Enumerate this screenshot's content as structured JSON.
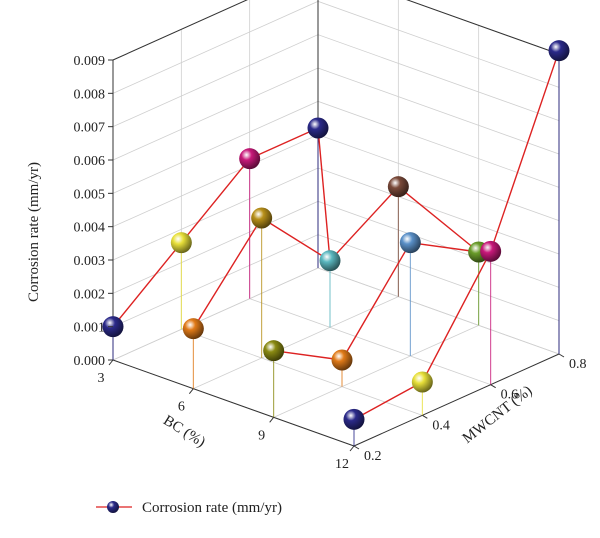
{
  "chart_data": {
    "type": "scatter",
    "title": "",
    "zlabel": "Corrosion rate (mm/yr)",
    "xlabel": "BC (%)",
    "ylabel": "MWCNT (%)",
    "x_ticks": [
      "3",
      "6",
      "9",
      "12"
    ],
    "y_ticks": [
      "0.2",
      "0.4",
      "0.6",
      "0.8"
    ],
    "z_ticks": [
      "0.000",
      "0.001",
      "0.002",
      "0.003",
      "0.004",
      "0.005",
      "0.006",
      "0.007",
      "0.008",
      "0.009"
    ],
    "xlim": [
      3,
      12
    ],
    "ylim": [
      0.2,
      0.8
    ],
    "zlim": [
      0,
      0.009
    ],
    "grid": true,
    "legend_position": "bottom-left",
    "series": [
      {
        "name": "Corrosion rate (mm/yr)",
        "marker_color": "#2b2a8a",
        "line_color": "#dd2222",
        "points": [
          {
            "bc": 3,
            "mwcnt": 0.2,
            "rate": 0.001,
            "color": "#2b2a8a"
          },
          {
            "bc": 3,
            "mwcnt": 0.4,
            "rate": 0.0026,
            "color": "#e8e03a"
          },
          {
            "bc": 3,
            "mwcnt": 0.6,
            "rate": 0.0042,
            "color": "#c8197a"
          },
          {
            "bc": 3,
            "mwcnt": 0.8,
            "rate": 0.0042,
            "color": "#2b2a8a"
          },
          {
            "bc": 6,
            "mwcnt": 0.2,
            "rate": 0.0018,
            "color": "#e07a18"
          },
          {
            "bc": 6,
            "mwcnt": 0.4,
            "rate": 0.0042,
            "color": "#b8901a"
          },
          {
            "bc": 6,
            "mwcnt": 0.6,
            "rate": 0.002,
            "color": "#5bb8c0"
          },
          {
            "bc": 6,
            "mwcnt": 0.8,
            "rate": 0.0033,
            "color": "#7a4a3a"
          },
          {
            "bc": 9,
            "mwcnt": 0.2,
            "rate": 0.002,
            "color": "#8a8a12"
          },
          {
            "bc": 9,
            "mwcnt": 0.4,
            "rate": 0.0008,
            "color": "#e07a18"
          },
          {
            "bc": 9,
            "mwcnt": 0.6,
            "rate": 0.0034,
            "color": "#5a90c8"
          },
          {
            "bc": 9,
            "mwcnt": 0.8,
            "rate": 0.0022,
            "color": "#6a9c2a"
          },
          {
            "bc": 12,
            "mwcnt": 0.2,
            "rate": 0.0008,
            "color": "#2b2a8a"
          },
          {
            "bc": 12,
            "mwcnt": 0.4,
            "rate": 0.001,
            "color": "#e8e03a"
          },
          {
            "bc": 12,
            "mwcnt": 0.6,
            "rate": 0.004,
            "color": "#c8197a"
          },
          {
            "bc": 12,
            "mwcnt": 0.8,
            "rate": 0.0091,
            "color": "#2b2a8a"
          }
        ],
        "line_segments": [
          [
            0,
            1
          ],
          [
            1,
            2
          ],
          [
            2,
            3
          ],
          [
            4,
            5
          ],
          [
            5,
            6
          ],
          [
            6,
            7
          ],
          [
            8,
            9
          ],
          [
            9,
            10
          ],
          [
            10,
            11
          ],
          [
            12,
            13
          ],
          [
            13,
            14
          ],
          [
            14,
            15
          ],
          [
            3,
            6
          ],
          [
            7,
            11
          ]
        ]
      }
    ],
    "legend": [
      {
        "label": "Corrosion rate (mm/yr)"
      }
    ]
  }
}
